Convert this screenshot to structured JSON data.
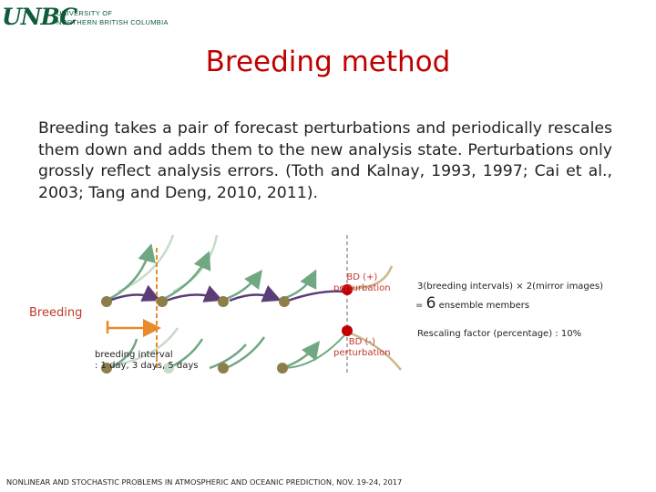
{
  "logo": {
    "mark": "UNBC",
    "line1": "UNIVERSITY OF",
    "line2": "NORTHERN BRITISH COLUMBIA"
  },
  "title": "Breeding method",
  "body": "Breeding takes a pair of forecast perturbations and periodically rescales them down and adds them to the new analysis state. Perturbations only grossly reflect analysis errors. (Toth and Kalnay, 1993, 1997; Cai et al., 2003; Tang and Deng, 2010, 2011).",
  "diagram": {
    "breeding_label": "Breeding",
    "bv_plus_line1": "BD (+)",
    "bv_plus_line2": "perturbation",
    "bv_minus_line1": "BD (-)",
    "bv_minus_line2": "perturbation",
    "interval_line1": "breeding interval",
    "interval_line2": ": 1 day, 3 days, 5 days",
    "formula_line1": "3(breeding intervals) × 2(mirror images)",
    "formula_eq": "= ",
    "formula_num": "6",
    "formula_tail": " ensemble members",
    "rescaling": "Rescaling factor (percentage) : 10%",
    "colors": {
      "green": "#6fa882",
      "pale_green": "#c6dcc9",
      "purple": "#5b3d78",
      "olive_dot": "#8c7f4a",
      "red_dot": "#c00000",
      "orange": "#e8892b",
      "grey_dash": "#999999",
      "tan": "#cbb890"
    }
  },
  "footer": "NONLINEAR AND STOCHASTIC PROBLEMS IN ATMOSPHERIC AND OCEANIC PREDICTION, NOV. 19-24, 2017"
}
